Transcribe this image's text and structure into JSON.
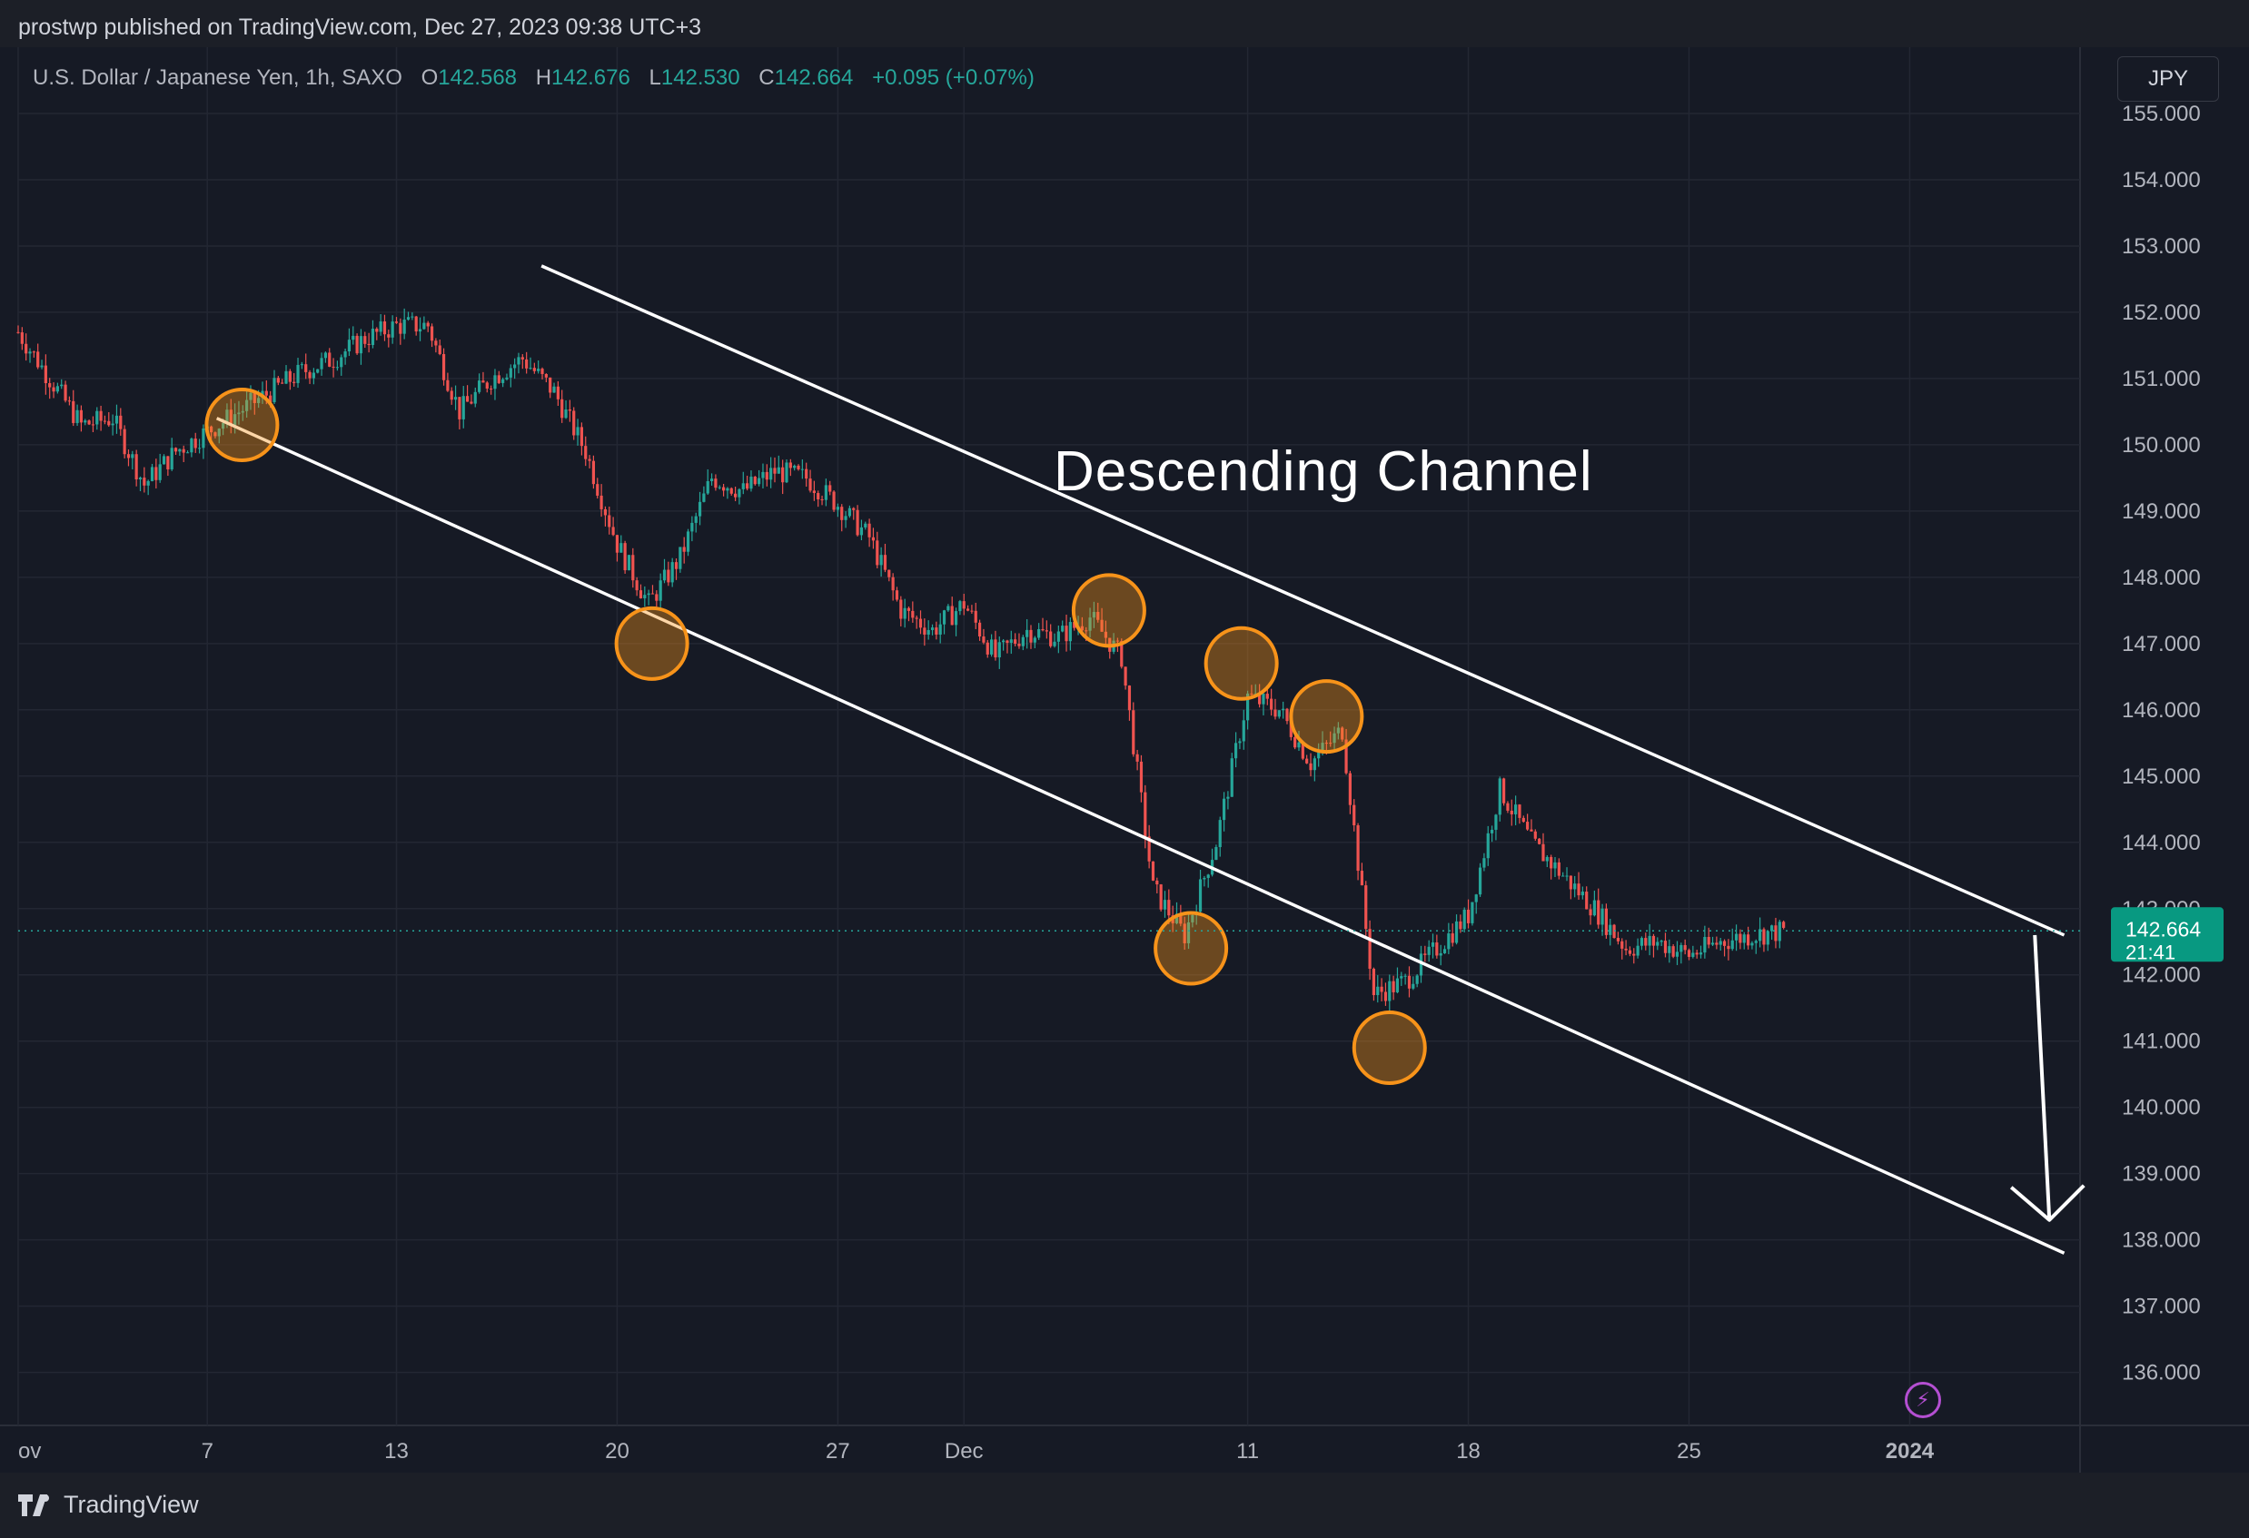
{
  "publisher_line": "prostwp published on TradingView.com, Dec 27, 2023 09:38 UTC+3",
  "symbol": {
    "name": "U.S. Dollar / Japanese Yen, 1h, SAXO",
    "o_label": "O",
    "o": "142.568",
    "h_label": "H",
    "h": "142.676",
    "l_label": "L",
    "l": "142.530",
    "c_label": "C",
    "c": "142.664",
    "change": "+0.095 (+0.07%)"
  },
  "currency_button": "JPY",
  "brand": "TradingView",
  "colors": {
    "up": "#26a69a",
    "down": "#ef5350",
    "marker": "#f7931a",
    "annotation": "#ffffff",
    "price_tag": "#089981"
  },
  "chart_data": {
    "type": "candlestick",
    "symbol": "USDJPY",
    "timeframe": "1h",
    "ylim": [
      135.2,
      156
    ],
    "y_ticks": [
      "155.000",
      "154.000",
      "153.000",
      "152.000",
      "151.000",
      "150.000",
      "149.000",
      "148.000",
      "147.000",
      "146.000",
      "145.000",
      "144.000",
      "143.000",
      "142.000",
      "141.000",
      "140.000",
      "139.000",
      "138.000",
      "137.000",
      "136.000"
    ],
    "x_ticks": [
      "ov",
      "7",
      "13",
      "20",
      "27",
      "Dec",
      "11",
      "18",
      "25",
      "2024"
    ],
    "x_tick_days": [
      1,
      7,
      13,
      20,
      27,
      31,
      40,
      47,
      54,
      61
    ],
    "xlim": [
      1,
      66
    ],
    "path": [
      [
        1,
        151.7
      ],
      [
        2,
        151.0
      ],
      [
        3,
        150.3
      ],
      [
        4,
        150.4
      ],
      [
        5,
        149.4
      ],
      [
        6,
        149.9
      ],
      [
        7,
        150.2
      ],
      [
        8,
        150.5
      ],
      [
        9,
        150.8
      ],
      [
        10,
        151.1
      ],
      [
        11,
        151.3
      ],
      [
        12,
        151.6
      ],
      [
        13,
        151.8
      ],
      [
        14,
        151.8
      ],
      [
        15,
        150.5
      ],
      [
        16,
        151.0
      ],
      [
        17,
        151.3
      ],
      [
        18,
        150.8
      ],
      [
        19,
        149.9
      ],
      [
        20,
        148.5
      ],
      [
        21,
        147.6
      ],
      [
        22,
        148.3
      ],
      [
        23,
        149.5
      ],
      [
        24,
        149.3
      ],
      [
        25,
        149.6
      ],
      [
        26,
        149.5
      ],
      [
        27,
        149.1
      ],
      [
        28,
        148.6
      ],
      [
        29,
        147.5
      ],
      [
        30,
        147.2
      ],
      [
        31,
        147.6
      ],
      [
        32,
        146.8
      ],
      [
        33,
        147.2
      ],
      [
        34,
        147.1
      ],
      [
        35,
        147.4
      ],
      [
        36,
        146.8
      ],
      [
        37,
        143.3
      ],
      [
        38,
        142.6
      ],
      [
        39,
        144.0
      ],
      [
        40,
        146.2
      ],
      [
        41,
        146.0
      ],
      [
        42,
        145.2
      ],
      [
        43,
        145.7
      ],
      [
        44,
        141.7
      ],
      [
        45,
        141.9
      ],
      [
        46,
        142.4
      ],
      [
        47,
        142.9
      ],
      [
        48,
        144.8
      ],
      [
        49,
        144.0
      ],
      [
        50,
        143.5
      ],
      [
        51,
        143.0
      ],
      [
        52,
        142.4
      ],
      [
        53,
        142.5
      ],
      [
        54,
        142.3
      ],
      [
        55,
        142.5
      ],
      [
        56,
        142.6
      ],
      [
        57,
        142.66
      ]
    ],
    "last_price": "142.664",
    "countdown": "21:41",
    "annotation": "Descending Channel",
    "channel": {
      "upper": [
        [
          17.6,
          152.7
        ],
        [
          65.9,
          142.6
        ]
      ],
      "lower": [
        [
          7.3,
          150.4
        ],
        [
          65.9,
          137.8
        ]
      ]
    },
    "touch_points": [
      [
        8.1,
        150.3
      ],
      [
        21.1,
        147.0
      ],
      [
        35.6,
        147.5
      ],
      [
        39.8,
        146.7
      ],
      [
        42.5,
        145.9
      ],
      [
        38.2,
        142.4
      ],
      [
        44.5,
        140.9
      ]
    ],
    "projection_arrow": [
      [
        65.2,
        142.6
      ],
      [
        65.2,
        138.3
      ]
    ]
  }
}
